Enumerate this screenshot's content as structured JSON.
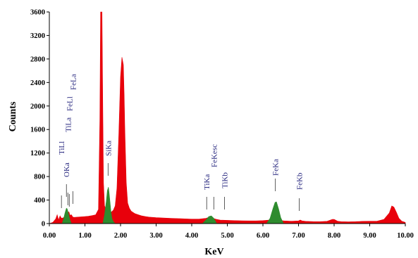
{
  "chart_data": {
    "type": "area",
    "title": "",
    "xlabel": "KeV",
    "ylabel": "Counts",
    "xlim": [
      0,
      10
    ],
    "ylim": [
      0,
      3600
    ],
    "grid": false,
    "legend": "none",
    "x_ticks": [
      "0.00",
      "1.00",
      "2.00",
      "3.00",
      "4.00",
      "5.00",
      "6.00",
      "7.00",
      "8.00",
      "9.00",
      "10.00"
    ],
    "y_ticks": [
      "0",
      "400",
      "800",
      "1200",
      "1600",
      "2000",
      "2400",
      "2800",
      "3200",
      "3600"
    ],
    "series": [
      {
        "color": "#e8000b",
        "x": [
          0.0,
          0.1,
          0.18,
          0.22,
          0.26,
          0.3,
          0.34,
          0.4,
          0.5,
          0.55,
          0.58,
          0.62,
          0.66,
          0.7,
          0.8,
          0.9,
          1.0,
          1.1,
          1.2,
          1.3,
          1.38,
          1.42,
          1.44,
          1.46,
          1.48,
          1.5,
          1.52,
          1.55,
          1.6,
          1.65,
          1.7,
          1.75,
          1.8,
          1.85,
          1.9,
          1.95,
          2.0,
          2.04,
          2.08,
          2.1,
          2.12,
          2.16,
          2.2,
          2.25,
          2.3,
          2.35,
          2.4,
          2.5,
          2.6,
          2.7,
          2.8,
          3.0,
          3.2,
          3.4,
          3.6,
          3.8,
          4.0,
          4.2,
          4.4,
          4.5,
          4.6,
          4.7,
          4.8,
          5.0,
          5.2,
          5.4,
          5.6,
          5.8,
          6.0,
          6.2,
          6.3,
          6.35,
          6.4,
          6.5,
          6.6,
          6.8,
          7.0,
          7.05,
          7.1,
          7.2,
          7.4,
          7.6,
          7.8,
          7.95,
          8.0,
          8.1,
          8.2,
          8.4,
          8.6,
          8.8,
          9.0,
          9.2,
          9.4,
          9.55,
          9.62,
          9.68,
          9.75,
          9.82,
          9.9,
          10.0
        ],
        "y": [
          0,
          20,
          80,
          150,
          60,
          130,
          90,
          100,
          180,
          200,
          140,
          150,
          110,
          105,
          110,
          115,
          120,
          125,
          135,
          150,
          240,
          1800,
          3600,
          3600,
          3600,
          2000,
          700,
          300,
          230,
          200,
          190,
          200,
          230,
          300,
          600,
          1500,
          2500,
          2830,
          2700,
          2200,
          1600,
          700,
          350,
          260,
          210,
          190,
          170,
          150,
          130,
          120,
          110,
          100,
          95,
          90,
          85,
          80,
          75,
          75,
          90,
          110,
          90,
          70,
          60,
          55,
          50,
          48,
          45,
          45,
          50,
          60,
          70,
          75,
          60,
          50,
          45,
          40,
          45,
          60,
          45,
          38,
          34,
          32,
          38,
          70,
          70,
          40,
          32,
          30,
          32,
          38,
          40,
          40,
          70,
          180,
          300,
          280,
          190,
          90,
          40,
          20
        ]
      },
      {
        "color": "#2e8b2e",
        "x": [
          0.36,
          0.4,
          0.44,
          0.48,
          0.5,
          0.54,
          0.58,
          0.62,
          1.5,
          1.55,
          1.6,
          1.63,
          1.66,
          1.68,
          1.7,
          1.73,
          1.76,
          1.8,
          1.85,
          4.3,
          4.4,
          4.48,
          4.55,
          4.62,
          4.7,
          6.1,
          6.2,
          6.28,
          6.34,
          6.38,
          6.44,
          6.5,
          6.58
        ],
        "y": [
          0,
          80,
          180,
          260,
          250,
          160,
          60,
          0,
          0,
          150,
          380,
          560,
          620,
          520,
          400,
          200,
          80,
          30,
          0,
          0,
          60,
          120,
          130,
          90,
          0,
          0,
          90,
          250,
          360,
          370,
          250,
          100,
          0
        ]
      }
    ],
    "annotations": [
      {
        "label": "TiLl",
        "x": 0.34
      },
      {
        "label": "OKa",
        "x": 0.48
      },
      {
        "label": "TiLa",
        "x": 0.52
      },
      {
        "label": "FeLl",
        "x": 0.56
      },
      {
        "label": "FeLa",
        "x": 0.66
      },
      {
        "label": "SiKa",
        "x": 1.65
      },
      {
        "label": "TiKa",
        "x": 4.42
      },
      {
        "label": "FeKesc",
        "x": 4.62
      },
      {
        "label": "TiKb",
        "x": 4.92
      },
      {
        "label": "FeKa",
        "x": 6.35
      },
      {
        "label": "FeKb",
        "x": 7.02
      }
    ]
  }
}
